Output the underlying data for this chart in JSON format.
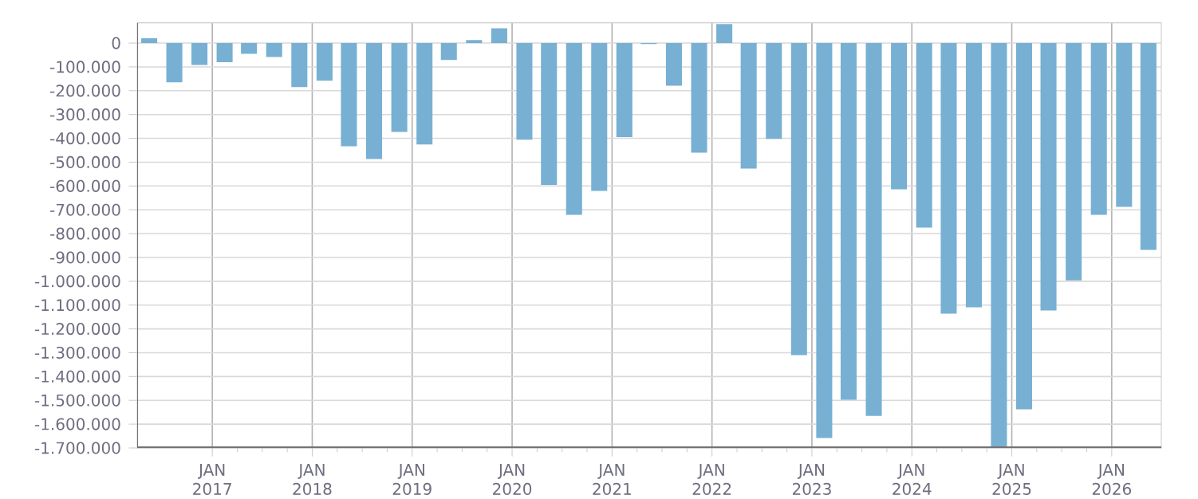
{
  "chart_data": {
    "type": "bar",
    "color": "#77b0d3",
    "grid": true,
    "x": [
      "2016-05-15",
      "2016-08-15",
      "2016-11-15",
      "2017-02-15",
      "2017-05-15",
      "2017-08-15",
      "2017-11-15",
      "2018-02-15",
      "2018-05-15",
      "2018-08-15",
      "2018-11-15",
      "2019-02-15",
      "2019-05-15",
      "2019-08-15",
      "2019-11-15",
      "2020-02-15",
      "2020-05-15",
      "2020-08-15",
      "2020-11-15",
      "2021-02-15",
      "2021-05-15",
      "2021-08-15",
      "2021-11-15",
      "2022-02-15",
      "2022-05-15",
      "2022-08-15",
      "2022-11-15",
      "2023-02-15",
      "2023-05-15",
      "2023-08-15",
      "2023-11-15",
      "2024-02-15",
      "2024-05-15",
      "2024-08-15",
      "2024-11-15",
      "2025-02-15",
      "2025-05-15",
      "2025-08-15",
      "2025-11-15",
      "2026-02-15",
      "2026-05-15"
    ],
    "values": [
      20000,
      -165000,
      -92000,
      -80000,
      -45000,
      -58000,
      -185000,
      -158000,
      -433000,
      -487000,
      -373000,
      -426000,
      -71000,
      13000,
      62000,
      -406000,
      -596000,
      -721000,
      -621000,
      -395000,
      -4000,
      -179000,
      -460000,
      80000,
      -527000,
      -402000,
      -1310000,
      -1658000,
      -1498000,
      -1565000,
      -614000,
      -775000,
      -1136000,
      -1109000,
      -1700000,
      -1538000,
      -1123000,
      -996000,
      -721000,
      -688000,
      -868000
    ],
    "xlim": [
      "2016-04-01",
      "2026-07-01"
    ],
    "xticks": [
      {
        "value": "2017-01-01",
        "label": "JAN 2017"
      },
      {
        "value": "2018-01-01",
        "label": "JAN 2018"
      },
      {
        "value": "2019-01-01",
        "label": "JAN 2019"
      },
      {
        "value": "2020-01-01",
        "label": "JAN 2020"
      },
      {
        "value": "2021-01-01",
        "label": "JAN 2021"
      },
      {
        "value": "2022-01-01",
        "label": "JAN 2022"
      },
      {
        "value": "2023-01-01",
        "label": "JAN 2023"
      },
      {
        "value": "2024-01-01",
        "label": "JAN 2024"
      },
      {
        "value": "2025-01-01",
        "label": "JAN 2025"
      },
      {
        "value": "2026-01-01",
        "label": "JAN 2026"
      }
    ],
    "ylim": [
      -1700000,
      85000
    ],
    "yticks": [
      0,
      {
        "value": -100000,
        "label": "-100.000"
      },
      {
        "value": -200000,
        "label": "-200.000"
      },
      {
        "value": -300000,
        "label": "-300.000"
      },
      {
        "value": -400000,
        "label": "-400.000"
      },
      {
        "value": -500000,
        "label": "-500.000"
      },
      {
        "value": -600000,
        "label": "-600.000"
      },
      {
        "value": -700000,
        "label": "-700.000"
      },
      {
        "value": -800000,
        "label": "-800.000"
      },
      {
        "value": -900000,
        "label": "-900.000"
      },
      {
        "value": -1000000,
        "label": "-1.000.000"
      },
      {
        "value": -1100000,
        "label": "-1.100.000"
      },
      {
        "value": -1200000,
        "label": "-1.200.000"
      },
      {
        "value": -1300000,
        "label": "-1.300.000"
      },
      {
        "value": -1400000,
        "label": "-1.400.000"
      },
      {
        "value": -1500000,
        "label": "-1.500.000"
      },
      {
        "value": -1600000,
        "label": "-1.600.000"
      },
      {
        "value": -1700000,
        "label": "-1.700.000"
      }
    ]
  }
}
